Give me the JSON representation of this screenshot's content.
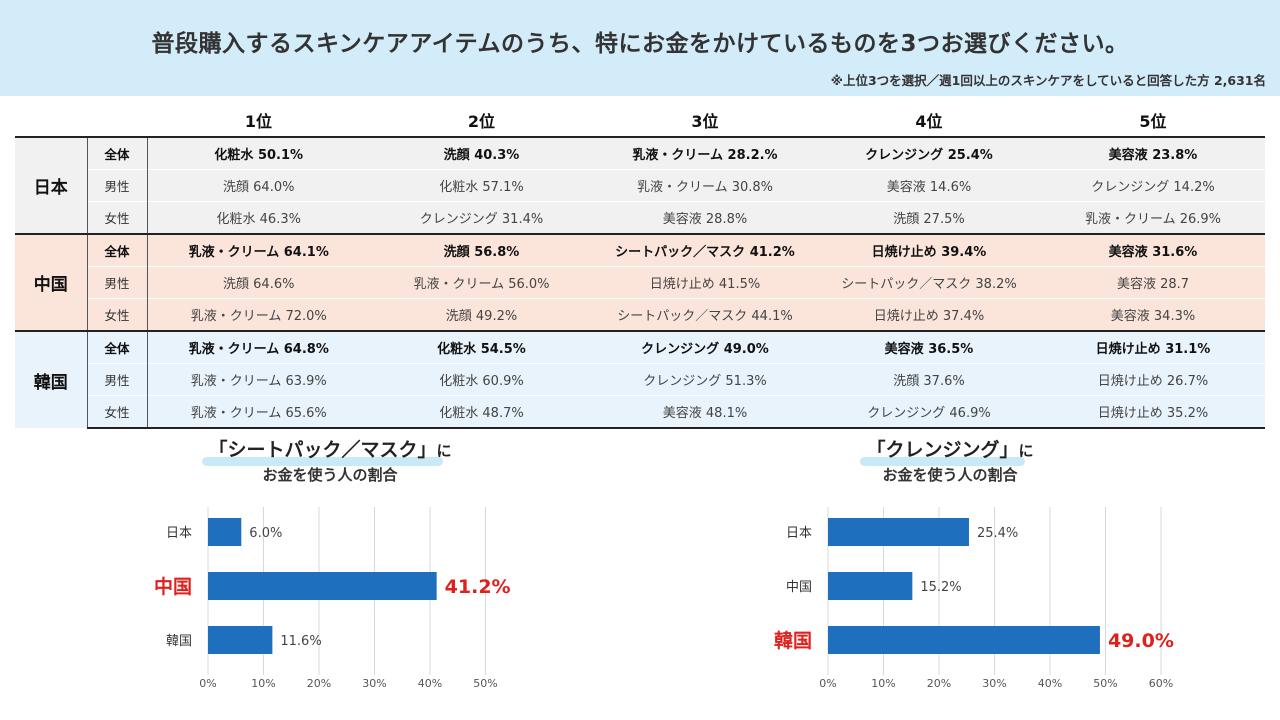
{
  "header": {
    "title": "普段購入するスキンケアアイテムのうち、特にお金をかけているものを3つお選びください。",
    "note": "※上位3つを選択／週1回以上のスキンケアをしていると回答した方 2,631名"
  },
  "table": {
    "rank_headers": [
      "1位",
      "2位",
      "3位",
      "4位",
      "5位"
    ],
    "groups": [
      {
        "country": "日本",
        "rows": [
          {
            "gender": "全体",
            "cells": [
              "化粧水 50.1%",
              "洗顔 40.3%",
              "乳液・クリーム 28.2.%",
              "クレンジング 25.4%",
              "美容液 23.8%"
            ],
            "highlight": []
          },
          {
            "gender": "男性",
            "cells": [
              "洗顔 64.0%",
              "化粧水 57.1%",
              "乳液・クリーム 30.8%",
              "美容液 14.6%",
              "クレンジング 14.2%"
            ],
            "highlight": []
          },
          {
            "gender": "女性",
            "cells": [
              "化粧水 46.3%",
              "クレンジング 31.4%",
              "美容液 28.8%",
              "洗顔 27.5%",
              "乳液・クリーム 26.9%"
            ],
            "highlight": []
          }
        ]
      },
      {
        "country": "中国",
        "rows": [
          {
            "gender": "全体",
            "cells": [
              "乳液・クリーム 64.1%",
              "洗顔 56.8%",
              "シートパック／マスク 41.2%",
              "日焼け止め 39.4%",
              "美容液 31.6%"
            ],
            "highlight": [
              2
            ]
          },
          {
            "gender": "男性",
            "cells": [
              "洗顔 64.6%",
              "乳液・クリーム 56.0%",
              "日焼け止め 41.5%",
              "シートパック／マスク 38.2%",
              "美容液 28.7"
            ],
            "highlight": []
          },
          {
            "gender": "女性",
            "cells": [
              "乳液・クリーム 72.0%",
              "洗顔 49.2%",
              "シートパック／マスク 44.1%",
              "日焼け止め 37.4%",
              "美容液 34.3%"
            ],
            "highlight": []
          }
        ]
      },
      {
        "country": "韓国",
        "rows": [
          {
            "gender": "全体",
            "cells": [
              "乳液・クリーム 64.8%",
              "化粧水 54.5%",
              "クレンジング 49.0%",
              "美容液 36.5%",
              "日焼け止め 31.1%"
            ],
            "highlight": [
              2
            ]
          },
          {
            "gender": "男性",
            "cells": [
              "乳液・クリーム 63.9%",
              "化粧水 60.9%",
              "クレンジング 51.3%",
              "洗顔 37.6%",
              "日焼け止め 26.7%"
            ],
            "highlight": []
          },
          {
            "gender": "女性",
            "cells": [
              "乳液・クリーム 65.6%",
              "化粧水 48.7%",
              "美容液 48.1%",
              "クレンジング 46.9%",
              "日焼け止め 35.2%"
            ],
            "highlight": []
          }
        ]
      }
    ]
  },
  "colors": {
    "bar": "#1f6fbf",
    "highlight": "#e0201d",
    "grid": "#d9d9d9",
    "header_bg": "#d3ecf9"
  },
  "chart_data": [
    {
      "type": "bar",
      "orientation": "horizontal",
      "title_main": "「シートパック／マスク」",
      "title_suffix": "に",
      "title_line2": "お金を使う人の割合",
      "categories": [
        "日本",
        "中国",
        "韓国"
      ],
      "values": [
        6.0,
        41.2,
        11.6
      ],
      "value_labels": [
        "6.0%",
        "41.2%",
        "11.6%"
      ],
      "highlight_index": 1,
      "xlim": [
        0,
        50
      ],
      "ticks": [
        0,
        10,
        20,
        30,
        40,
        50
      ],
      "tick_labels": [
        "0%",
        "10%",
        "20%",
        "30%",
        "40%",
        "50%"
      ],
      "grid": true
    },
    {
      "type": "bar",
      "orientation": "horizontal",
      "title_main": "「クレンジング」",
      "title_suffix": "に",
      "title_line2": "お金を使う人の割合",
      "categories": [
        "日本",
        "中国",
        "韓国"
      ],
      "values": [
        25.4,
        15.2,
        49.0
      ],
      "value_labels": [
        "25.4%",
        "15.2%",
        "49.0%"
      ],
      "highlight_index": 2,
      "xlim": [
        0,
        60
      ],
      "ticks": [
        0,
        10,
        20,
        30,
        40,
        50,
        60
      ],
      "tick_labels": [
        "0%",
        "10%",
        "20%",
        "30%",
        "40%",
        "50%",
        "60%"
      ],
      "grid": true
    }
  ]
}
